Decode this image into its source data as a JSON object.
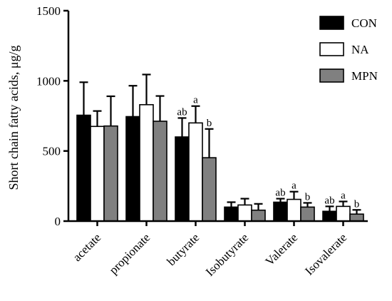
{
  "chart_data": {
    "type": "bar",
    "ylabel": "Short chain fatty acids, μg/g",
    "ylim": [
      0,
      1500
    ],
    "yticks": [
      0,
      500,
      1000,
      1500
    ],
    "grid": false,
    "legend_position": "top-right",
    "categories": [
      "acetate",
      "propionate",
      "butyrate",
      "Isobutyrate",
      "Valerate",
      "Isovalerate"
    ],
    "series": [
      {
        "name": "CON",
        "color": "#000000",
        "values": [
          755,
          745,
          600,
          100,
          135,
          70
        ],
        "errors": [
          235,
          220,
          135,
          35,
          25,
          35
        ]
      },
      {
        "name": "NA",
        "color": "#ffffff",
        "values": [
          675,
          830,
          700,
          115,
          155,
          105
        ],
        "errors": [
          110,
          215,
          120,
          45,
          55,
          35
        ]
      },
      {
        "name": "MPN",
        "color": "#808080",
        "values": [
          678,
          712,
          452,
          78,
          100,
          50
        ],
        "errors": [
          212,
          180,
          205,
          45,
          30,
          30
        ]
      }
    ],
    "significance": [
      {
        "category": "butyrate",
        "labels": [
          "ab",
          "a",
          "b"
        ]
      },
      {
        "category": "Valerate",
        "labels": [
          "ab",
          "a",
          "b"
        ]
      },
      {
        "category": "Isovalerate",
        "labels": [
          "ab",
          "a",
          "b"
        ]
      }
    ]
  }
}
